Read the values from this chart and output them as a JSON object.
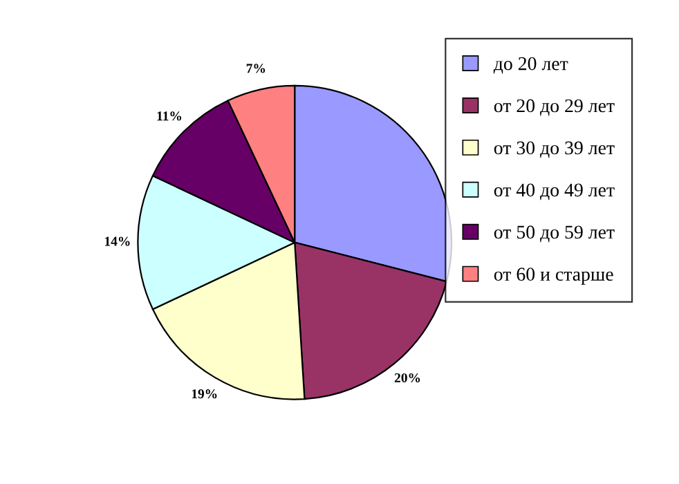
{
  "chart_data": {
    "type": "pie",
    "categories": [
      "до 20 лет",
      "от 20 до 29 лет",
      "от 30 до 39 лет",
      "от 40 до 49 лет",
      "от 50 до 59 лет",
      "от 60 и старше"
    ],
    "values": [
      29,
      20,
      19,
      14,
      11,
      7
    ],
    "colors": [
      "#9999ff",
      "#993366",
      "#ffffcc",
      "#ccffff",
      "#660066",
      "#ff8080"
    ],
    "value_labels": [
      null,
      "20%",
      "19%",
      "14%",
      "11%",
      "7%"
    ],
    "legend": "right"
  }
}
